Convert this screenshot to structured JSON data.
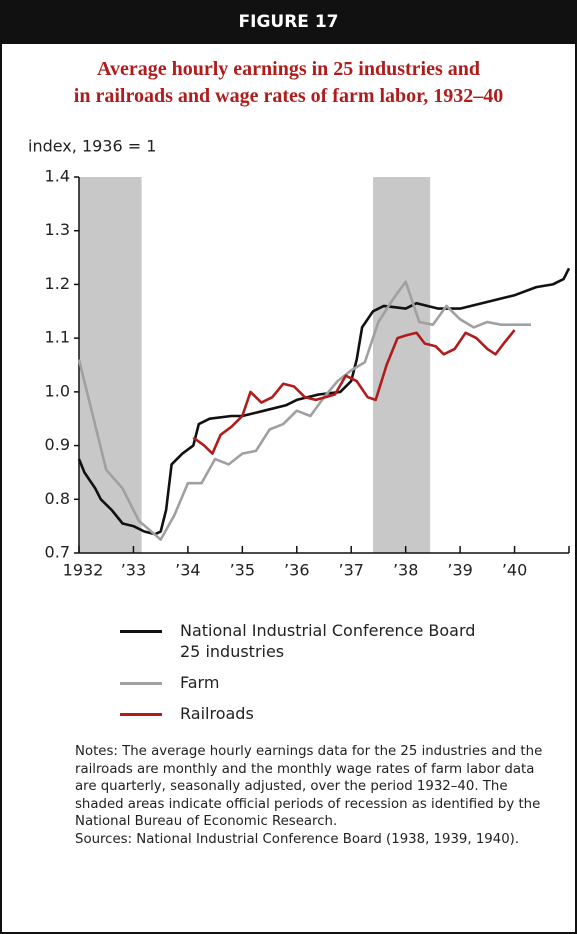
{
  "header": "FIGURE 17",
  "chart_data": {
    "type": "line",
    "title": "Average hourly earnings in 25 industries and\nin railroads and wage rates of farm labor, 1932–40",
    "y_label": "index, 1936 = 1",
    "xlim": [
      1932,
      1941
    ],
    "xticks": [
      {
        "value": 1932,
        "label": "1932"
      },
      {
        "value": 1933,
        "label": "’33"
      },
      {
        "value": 1934,
        "label": "’34"
      },
      {
        "value": 1935,
        "label": "’35"
      },
      {
        "value": 1936,
        "label": "’36"
      },
      {
        "value": 1937,
        "label": "’37"
      },
      {
        "value": 1938,
        "label": "’38"
      },
      {
        "value": 1939,
        "label": "’39"
      },
      {
        "value": 1940,
        "label": "’40"
      },
      {
        "value": 1941,
        "label": ""
      }
    ],
    "ylim": [
      0.7,
      1.4
    ],
    "yticks": [
      0.7,
      0.8,
      0.9,
      {
        "value": 1,
        "label": "1.0"
      },
      1.1,
      1.2,
      1.3,
      1.4
    ],
    "shaded_periods": [
      [
        1932,
        1933.15
      ],
      [
        1937.4,
        1938.45
      ]
    ],
    "shade_color": "#c8c8c8",
    "grid": false,
    "series": [
      {
        "name": "National Industrial Conference Board\n25 industries",
        "color": "#111111",
        "x": [
          1932.0,
          1932.1,
          1932.3,
          1932.4,
          1932.6,
          1932.8,
          1933.0,
          1933.2,
          1933.4,
          1933.5,
          1933.6,
          1933.7,
          1933.9,
          1934.1,
          1934.2,
          1934.4,
          1934.8,
          1935.0,
          1935.4,
          1935.8,
          1936.0,
          1936.4,
          1936.8,
          1937.0,
          1937.1,
          1937.2,
          1937.4,
          1937.6,
          1938.0,
          1938.2,
          1938.6,
          1939.0,
          1939.4,
          1939.8,
          1940.0,
          1940.4,
          1940.7,
          1940.9,
          1941.0
        ],
        "values": [
          0.875,
          0.85,
          0.82,
          0.8,
          0.78,
          0.755,
          0.75,
          0.74,
          0.735,
          0.74,
          0.78,
          0.865,
          0.885,
          0.9,
          0.94,
          0.95,
          0.955,
          0.955,
          0.965,
          0.975,
          0.985,
          0.995,
          1.0,
          1.02,
          1.06,
          1.12,
          1.15,
          1.16,
          1.155,
          1.165,
          1.155,
          1.155,
          1.165,
          1.175,
          1.18,
          1.195,
          1.2,
          1.21,
          1.23
        ]
      },
      {
        "name": "Farm",
        "color": "#a0a0a0",
        "x": [
          1932.0,
          1932.5,
          1932.8,
          1933.1,
          1933.5,
          1933.75,
          1934.0,
          1934.25,
          1934.5,
          1934.75,
          1935.0,
          1935.25,
          1935.5,
          1935.75,
          1936.0,
          1936.25,
          1936.5,
          1936.75,
          1937.0,
          1937.25,
          1937.5,
          1937.75,
          1938.0,
          1938.25,
          1938.5,
          1938.75,
          1939.0,
          1939.25,
          1939.5,
          1939.75,
          1940.0,
          1940.3
        ],
        "values": [
          1.06,
          0.855,
          0.82,
          0.76,
          0.725,
          0.77,
          0.83,
          0.83,
          0.875,
          0.865,
          0.885,
          0.89,
          0.93,
          0.94,
          0.965,
          0.955,
          0.99,
          1.02,
          1.04,
          1.055,
          1.13,
          1.17,
          1.205,
          1.13,
          1.125,
          1.16,
          1.135,
          1.12,
          1.13,
          1.125,
          1.125,
          1.125
        ]
      },
      {
        "name": "Railroads",
        "color": "#b01c1c",
        "x": [
          1934.1,
          1934.3,
          1934.45,
          1934.6,
          1934.8,
          1935.0,
          1935.15,
          1935.35,
          1935.55,
          1935.75,
          1935.95,
          1936.15,
          1936.35,
          1936.7,
          1936.9,
          1937.1,
          1937.3,
          1937.45,
          1937.65,
          1937.85,
          1938.0,
          1938.2,
          1938.35,
          1938.55,
          1938.7,
          1938.9,
          1939.1,
          1939.3,
          1939.5,
          1939.65,
          1939.8,
          1940.0
        ],
        "values": [
          0.915,
          0.9,
          0.885,
          0.92,
          0.935,
          0.955,
          1.0,
          0.98,
          0.99,
          1.015,
          1.01,
          0.99,
          0.985,
          0.995,
          1.03,
          1.02,
          0.99,
          0.985,
          1.05,
          1.1,
          1.105,
          1.11,
          1.09,
          1.085,
          1.07,
          1.08,
          1.11,
          1.1,
          1.08,
          1.07,
          1.09,
          1.115
        ]
      }
    ]
  },
  "notes": "Notes: The average hourly earnings data for the 25 industries and the railroads are monthly and the monthly wage rates of farm labor data are quarterly, seasonally adjusted, over the period 1932–40. The shaded areas indicate official periods of recession as identified by the National Bureau of Economic Research.",
  "sources": "Sources: National Industrial Conference Board (1938, 1939, 1940)."
}
